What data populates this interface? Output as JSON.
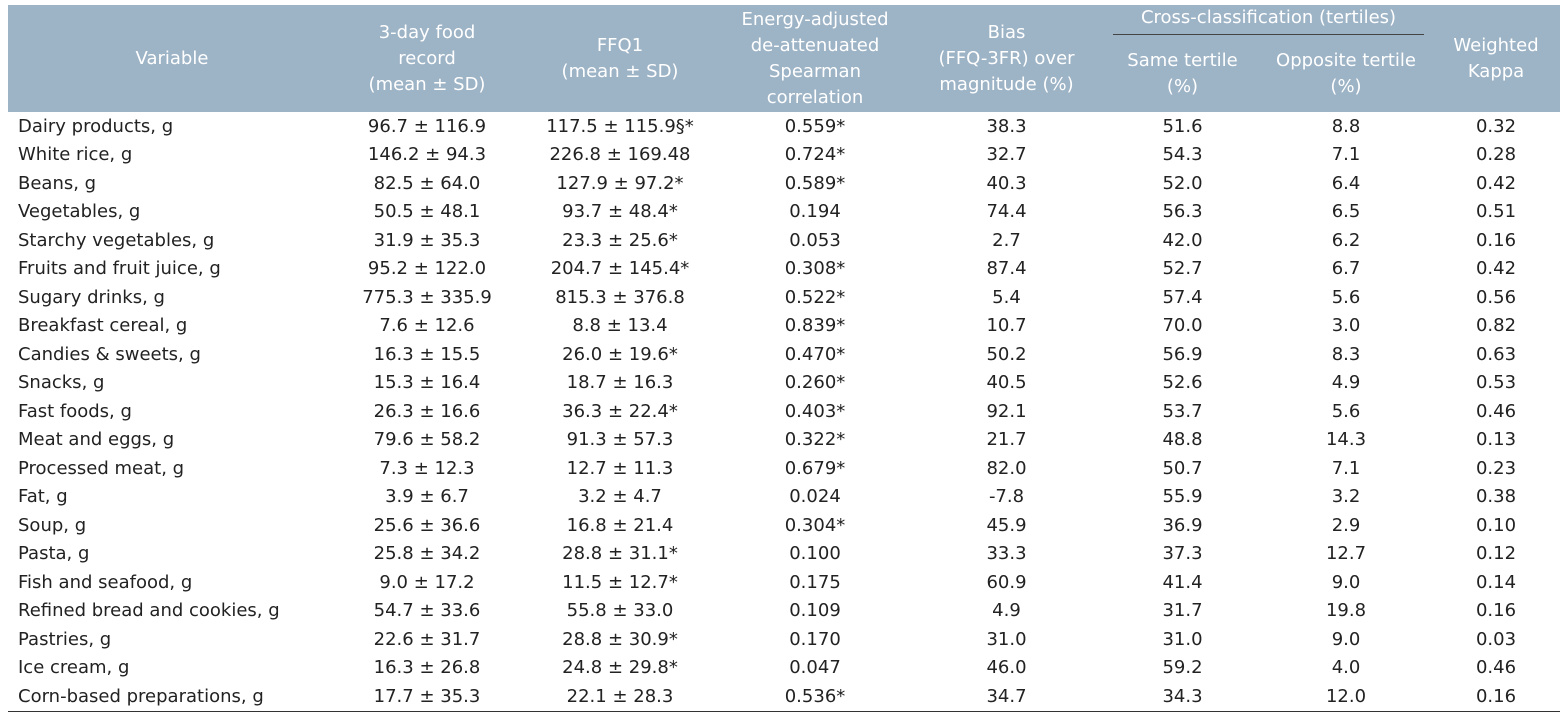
{
  "table": {
    "columns": [
      [
        "Variable"
      ],
      [
        "3-day food",
        "record",
        "(mean ± SD)"
      ],
      [
        "FFQ1",
        "(mean ± SD)"
      ],
      [
        "Energy-adjusted",
        "de-attenuated",
        "Spearman",
        "correlation"
      ],
      [
        "Bias",
        "(FFQ-3FR) over",
        "magnitude (%)"
      ],
      [
        "Same tertile",
        "(%)"
      ],
      [
        "Opposite tertile",
        "(%)"
      ],
      [
        "Weighted",
        "Kappa"
      ]
    ],
    "group": "Cross-classification (tertiles)",
    "rows": [
      [
        "Dairy products, g",
        "96.7 ± 116.9",
        "117.5 ± 115.9§*",
        "0.559*",
        "38.3",
        "51.6",
        "8.8",
        "0.32"
      ],
      [
        "White rice, g",
        "146.2 ± 94.3",
        "226.8 ± 169.48",
        "0.724*",
        "32.7",
        "54.3",
        "7.1",
        "0.28"
      ],
      [
        "Beans, g",
        "82.5 ± 64.0",
        "127.9 ± 97.2*",
        "0.589*",
        "40.3",
        "52.0",
        "6.4",
        "0.42"
      ],
      [
        "Vegetables, g",
        "50.5 ± 48.1",
        "93.7 ± 48.4*",
        "0.194",
        "74.4",
        "56.3",
        "6.5",
        "0.51"
      ],
      [
        "Starchy vegetables, g",
        "31.9 ± 35.3",
        "23.3 ± 25.6*",
        "0.053",
        "2.7",
        "42.0",
        "6.2",
        "0.16"
      ],
      [
        "Fruits and fruit juice, g",
        "95.2 ± 122.0",
        "204.7 ± 145.4*",
        "0.308*",
        "87.4",
        "52.7",
        "6.7",
        "0.42"
      ],
      [
        "Sugary drinks, g",
        "775.3 ± 335.9",
        "815.3 ± 376.8",
        "0.522*",
        "5.4",
        "57.4",
        "5.6",
        "0.56"
      ],
      [
        "Breakfast cereal, g",
        "7.6 ± 12.6",
        "8.8 ± 13.4",
        "0.839*",
        "10.7",
        "70.0",
        "3.0",
        "0.82"
      ],
      [
        "Candies & sweets, g",
        "16.3 ± 15.5",
        "26.0 ± 19.6*",
        "0.470*",
        "50.2",
        "56.9",
        "8.3",
        "0.63"
      ],
      [
        "Snacks, g",
        "15.3 ± 16.4",
        "18.7 ± 16.3",
        "0.260*",
        "40.5",
        "52.6",
        "4.9",
        "0.53"
      ],
      [
        "Fast foods, g",
        "26.3 ± 16.6",
        "36.3 ± 22.4*",
        "0.403*",
        "92.1",
        "53.7",
        "5.6",
        "0.46"
      ],
      [
        "Meat and eggs, g",
        "79.6 ± 58.2",
        "91.3 ± 57.3",
        "0.322*",
        "21.7",
        "48.8",
        "14.3",
        "0.13"
      ],
      [
        "Processed meat, g",
        "7.3 ± 12.3",
        "12.7 ± 11.3",
        "0.679*",
        "82.0",
        "50.7",
        "7.1",
        "0.23"
      ],
      [
        "Fat, g",
        "3.9 ± 6.7",
        "3.2 ± 4.7",
        "0.024",
        "-7.8",
        "55.9",
        "3.2",
        "0.38"
      ],
      [
        "Soup, g",
        "25.6 ± 36.6",
        "16.8 ± 21.4",
        "0.304*",
        "45.9",
        "36.9",
        "2.9",
        "0.10"
      ],
      [
        "Pasta, g",
        "25.8 ± 34.2",
        "28.8 ± 31.1*",
        "0.100",
        "33.3",
        "37.3",
        "12.7",
        "0.12"
      ],
      [
        "Fish and seafood, g",
        "9.0 ± 17.2",
        "11.5 ± 12.7*",
        "0.175",
        "60.9",
        "41.4",
        "9.0",
        "0.14"
      ],
      [
        "Refined bread and cookies, g",
        "54.7 ± 33.6",
        "55.8 ± 33.0",
        "0.109",
        "4.9",
        "31.7",
        "19.8",
        "0.16"
      ],
      [
        "Pastries, g",
        "22.6 ± 31.7",
        "28.8 ± 30.9*",
        "0.170",
        "31.0",
        "31.0",
        "9.0",
        "0.03"
      ],
      [
        "Ice cream, g",
        "16.3 ± 26.8",
        "24.8 ± 29.8*",
        "0.047",
        "46.0",
        "59.2",
        "4.0",
        "0.46"
      ],
      [
        "Corn-based preparations, g",
        "17.7 ± 35.3",
        "22.1 ± 28.3",
        "0.536*",
        "34.7",
        "34.3",
        "12.0",
        "0.16"
      ]
    ]
  }
}
